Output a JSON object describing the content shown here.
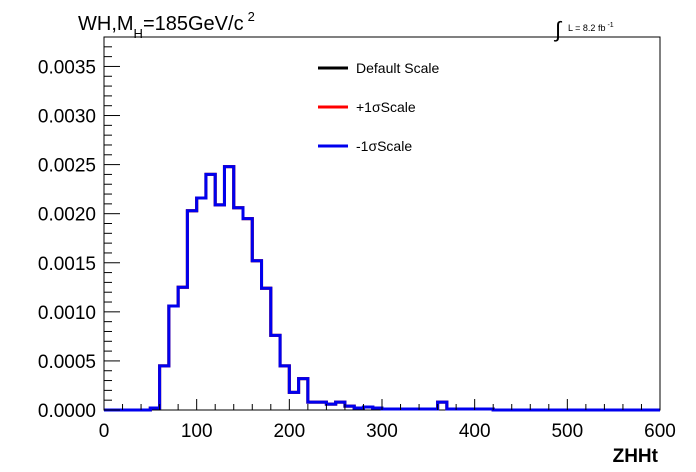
{
  "chart_data": {
    "type": "line",
    "title": {
      "main": "WH,M",
      "sub": "H",
      "rest": "=185GeV/c",
      "sup": "2"
    },
    "lumi": {
      "integral": "∫",
      "text": "L = 8.2 fb",
      "sup": "-1"
    },
    "xlabel": "ZHHt",
    "ylabel": "",
    "xlim": [
      0,
      600
    ],
    "ylim": [
      0,
      0.0038
    ],
    "grid": false,
    "legend_position": "top-center",
    "x_tick_labels": [
      "0",
      "100",
      "200",
      "300",
      "400",
      "500",
      "600"
    ],
    "x_tick_values": [
      0,
      100,
      200,
      300,
      400,
      500,
      600
    ],
    "y_tick_labels": [
      "0.0000",
      "0.0005",
      "0.0010",
      "0.0015",
      "0.0020",
      "0.0025",
      "0.0030",
      "0.0035"
    ],
    "y_tick_values": [
      0,
      0.0005,
      0.001,
      0.0015,
      0.002,
      0.0025,
      0.003,
      0.0035
    ],
    "bin_edges": [
      0,
      10,
      20,
      30,
      40,
      50,
      60,
      70,
      80,
      90,
      100,
      110,
      120,
      130,
      140,
      150,
      160,
      170,
      180,
      190,
      200,
      210,
      220,
      230,
      240,
      250,
      260,
      270,
      280,
      290,
      300,
      310,
      320,
      330,
      340,
      350,
      360,
      370,
      380,
      390,
      400,
      410,
      420,
      430,
      440,
      450,
      460,
      470,
      480,
      490,
      500,
      510,
      520,
      530,
      540,
      550,
      560,
      570,
      580,
      590,
      600
    ],
    "series": [
      {
        "name": "Default Scale",
        "color": "#000000",
        "values": [
          0,
          0,
          0,
          0,
          0,
          2e-05,
          0.00045,
          0.00106,
          0.00125,
          0.00203,
          0.00216,
          0.0024,
          0.00209,
          0.00248,
          0.00206,
          0.00195,
          0.00152,
          0.00124,
          0.00076,
          0.00045,
          0.00018,
          0.00032,
          8e-05,
          8e-05,
          6e-05,
          8e-05,
          4e-05,
          2e-05,
          3e-05,
          2e-05,
          1e-05,
          1e-05,
          1e-05,
          1e-05,
          1e-05,
          1e-05,
          8e-05,
          1e-05,
          1e-05,
          1e-05,
          1e-05,
          1e-05,
          0,
          0,
          0,
          0,
          0,
          0,
          0,
          0,
          0,
          0,
          0,
          0,
          0,
          0,
          0,
          0,
          0,
          0
        ]
      },
      {
        "name": "+1σScale",
        "color": "#ff0000",
        "values": [
          0,
          0,
          0,
          0,
          0,
          2e-05,
          0.00045,
          0.00106,
          0.00125,
          0.00203,
          0.00216,
          0.0024,
          0.00209,
          0.00248,
          0.00206,
          0.00195,
          0.00152,
          0.00124,
          0.00076,
          0.00045,
          0.00018,
          0.00032,
          8e-05,
          8e-05,
          6e-05,
          8e-05,
          4e-05,
          2e-05,
          3e-05,
          2e-05,
          1e-05,
          1e-05,
          1e-05,
          1e-05,
          1e-05,
          1e-05,
          8e-05,
          1e-05,
          1e-05,
          1e-05,
          1e-05,
          1e-05,
          0,
          0,
          0,
          0,
          0,
          0,
          0,
          0,
          0,
          0,
          0,
          0,
          0,
          0,
          0,
          0,
          0,
          0
        ]
      },
      {
        "name": "-1σScale",
        "color": "#0000ee",
        "values": [
          0,
          0,
          0,
          0,
          0,
          2e-05,
          0.00045,
          0.00106,
          0.00125,
          0.00203,
          0.00216,
          0.0024,
          0.00209,
          0.00248,
          0.00206,
          0.00195,
          0.00152,
          0.00124,
          0.00076,
          0.00045,
          0.00018,
          0.00032,
          8e-05,
          8e-05,
          6e-05,
          8e-05,
          4e-05,
          2e-05,
          3e-05,
          2e-05,
          1e-05,
          1e-05,
          1e-05,
          1e-05,
          1e-05,
          1e-05,
          8e-05,
          1e-05,
          1e-05,
          1e-05,
          1e-05,
          1e-05,
          0,
          0,
          0,
          0,
          0,
          0,
          0,
          0,
          0,
          0,
          0,
          0,
          0,
          0,
          0,
          0,
          0,
          0
        ]
      }
    ]
  }
}
